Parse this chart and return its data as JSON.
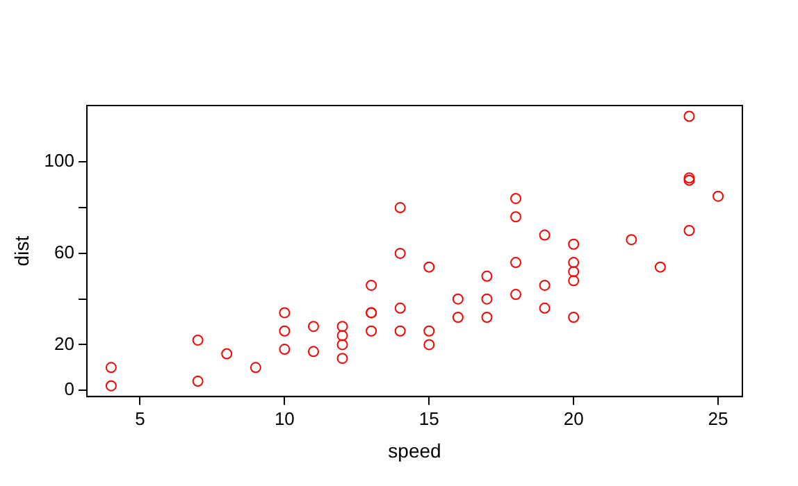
{
  "chart_data": {
    "type": "scatter",
    "xlabel": "speed",
    "ylabel": "dist",
    "x": [
      4,
      4,
      7,
      7,
      8,
      9,
      10,
      10,
      10,
      11,
      11,
      12,
      12,
      12,
      12,
      13,
      13,
      13,
      13,
      14,
      14,
      14,
      14,
      15,
      15,
      15,
      16,
      16,
      17,
      17,
      17,
      18,
      18,
      18,
      18,
      19,
      19,
      19,
      20,
      20,
      20,
      20,
      20,
      22,
      23,
      24,
      24,
      24,
      24,
      25
    ],
    "values": [
      2,
      10,
      4,
      22,
      16,
      10,
      18,
      26,
      34,
      17,
      28,
      14,
      20,
      24,
      28,
      26,
      34,
      34,
      46,
      26,
      36,
      60,
      80,
      20,
      26,
      54,
      32,
      40,
      32,
      40,
      50,
      42,
      56,
      76,
      84,
      36,
      46,
      68,
      32,
      48,
      52,
      56,
      64,
      66,
      54,
      70,
      92,
      93,
      120,
      85
    ],
    "color": "#ff0000",
    "marker": "circle",
    "xlim": [
      3.16,
      25.84
    ],
    "xticks": [
      5,
      10,
      15,
      20,
      25
    ],
    "ylim": [
      -2.72,
      124.72
    ],
    "yticks": [
      0,
      20,
      {
        "value": 40,
        "label": null
      },
      60,
      {
        "value": 80,
        "label": null
      },
      100
    ],
    "grid": false,
    "legend": false
  }
}
